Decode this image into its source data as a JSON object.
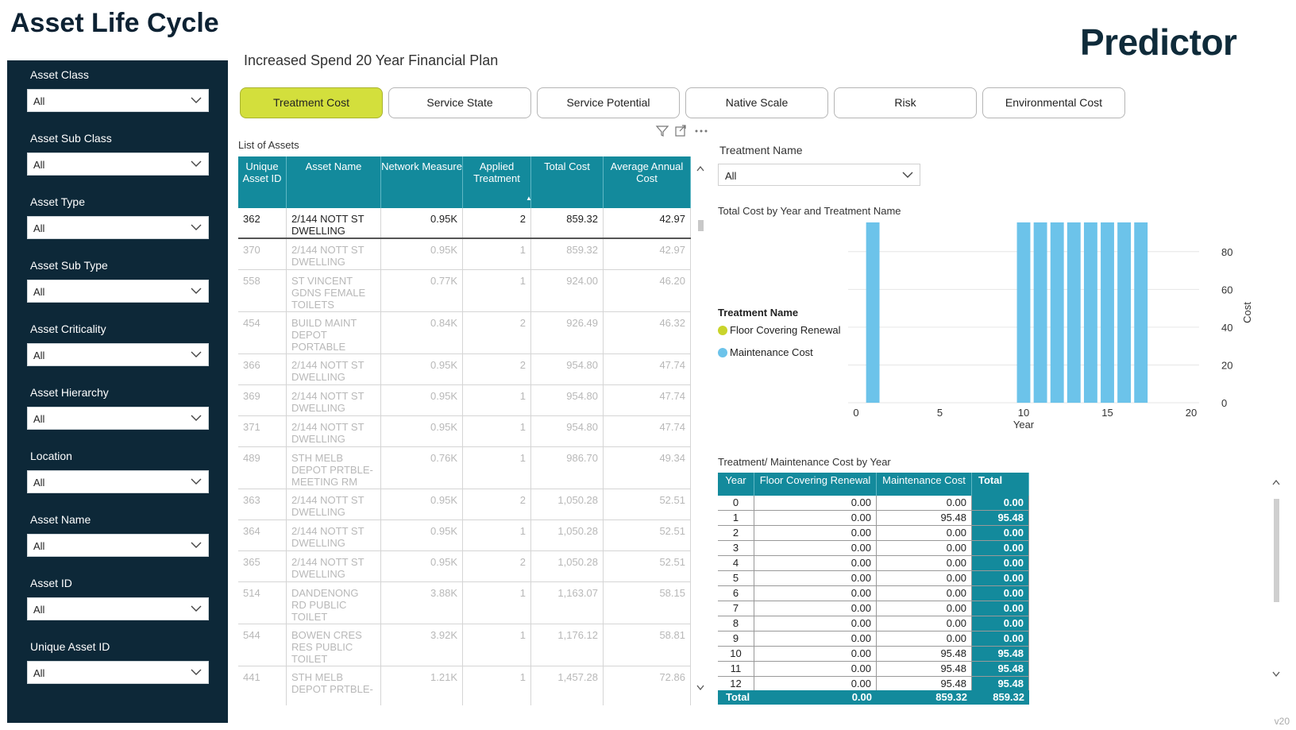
{
  "app": {
    "title": "Asset Life Cycle",
    "logo": "Predictor",
    "version": "v20"
  },
  "subtitle": "Increased Spend 20 Year Financial Plan",
  "filters": [
    {
      "label": "Asset Class",
      "value": "All"
    },
    {
      "label": "Asset Sub Class",
      "value": "All"
    },
    {
      "label": "Asset Type",
      "value": "All"
    },
    {
      "label": "Asset Sub Type",
      "value": "All"
    },
    {
      "label": "Asset Criticality",
      "value": "All"
    },
    {
      "label": "Asset Hierarchy",
      "value": "All"
    },
    {
      "label": "Location",
      "value": "All"
    },
    {
      "label": "Asset Name",
      "value": "All"
    },
    {
      "label": "Asset ID",
      "value": "All"
    },
    {
      "label": "Unique Asset ID",
      "value": "All"
    }
  ],
  "tabs": [
    {
      "label": "Treatment Cost",
      "active": true
    },
    {
      "label": "Service State",
      "active": false
    },
    {
      "label": "Service Potential",
      "active": false
    },
    {
      "label": "Native Scale",
      "active": false
    },
    {
      "label": "Risk",
      "active": false
    },
    {
      "label": "Environmental Cost",
      "active": false
    }
  ],
  "asset_list": {
    "title": "List of Assets",
    "columns": [
      "Unique Asset ID",
      "Asset Name",
      "Network Measure",
      "Applied Treatment",
      "Total Cost",
      "Average Annual Cost"
    ],
    "sort_indicator": "▲",
    "rows": [
      {
        "id": "362",
        "name": "2/144 NOTT ST DWELLING",
        "measure": "0.95K",
        "treatment": "2",
        "total": "859.32",
        "avg": "42.97",
        "selected": true
      },
      {
        "id": "370",
        "name": "2/144 NOTT ST DWELLING",
        "measure": "0.95K",
        "treatment": "1",
        "total": "859.32",
        "avg": "42.97"
      },
      {
        "id": "558",
        "name": "ST VINCENT GDNS FEMALE TOILETS",
        "measure": "0.77K",
        "treatment": "1",
        "total": "924.00",
        "avg": "46.20"
      },
      {
        "id": "454",
        "name": "BUILD MAINT DEPOT PORTABLE",
        "measure": "0.84K",
        "treatment": "2",
        "total": "926.49",
        "avg": "46.32"
      },
      {
        "id": "366",
        "name": "2/144 NOTT ST DWELLING",
        "measure": "0.95K",
        "treatment": "2",
        "total": "954.80",
        "avg": "47.74"
      },
      {
        "id": "369",
        "name": "2/144 NOTT ST DWELLING",
        "measure": "0.95K",
        "treatment": "1",
        "total": "954.80",
        "avg": "47.74"
      },
      {
        "id": "371",
        "name": "2/144 NOTT ST DWELLING",
        "measure": "0.95K",
        "treatment": "1",
        "total": "954.80",
        "avg": "47.74"
      },
      {
        "id": "489",
        "name": "STH MELB DEPOT PRTBLE-MEETING RM",
        "measure": "0.76K",
        "treatment": "1",
        "total": "986.70",
        "avg": "49.34"
      },
      {
        "id": "363",
        "name": "2/144 NOTT ST DWELLING",
        "measure": "0.95K",
        "treatment": "2",
        "total": "1,050.28",
        "avg": "52.51"
      },
      {
        "id": "364",
        "name": "2/144 NOTT ST DWELLING",
        "measure": "0.95K",
        "treatment": "1",
        "total": "1,050.28",
        "avg": "52.51"
      },
      {
        "id": "365",
        "name": "2/144 NOTT ST DWELLING",
        "measure": "0.95K",
        "treatment": "2",
        "total": "1,050.28",
        "avg": "52.51"
      },
      {
        "id": "514",
        "name": "DANDENONG RD PUBLIC TOILET",
        "measure": "3.88K",
        "treatment": "1",
        "total": "1,163.07",
        "avg": "58.15"
      },
      {
        "id": "544",
        "name": "BOWEN CRES RES PUBLIC TOILET",
        "measure": "3.92K",
        "treatment": "1",
        "total": "1,176.12",
        "avg": "58.81"
      },
      {
        "id": "441",
        "name": "STH MELB DEPOT PRTBLE-",
        "measure": "1.21K",
        "treatment": "1",
        "total": "1,457.28",
        "avg": "72.86"
      }
    ]
  },
  "treatment_slicer": {
    "label": "Treatment Name",
    "value": "All"
  },
  "chart_title": "Total Cost by Year and Treatment Name",
  "legend": {
    "title": "Treatment Name",
    "items": [
      {
        "name": "Floor Covering Renewal",
        "color": "#c9d42b"
      },
      {
        "name": "Maintenance Cost",
        "color": "#6cc3ea"
      }
    ]
  },
  "chart_data": {
    "type": "bar",
    "xlabel": "Year",
    "ylabel": "Cost",
    "x_ticks": [
      "0",
      "5",
      "10",
      "15",
      "20"
    ],
    "y_ticks": [
      "0",
      "20",
      "40",
      "60",
      "80"
    ],
    "xlim": [
      0,
      20
    ],
    "ylim": [
      0,
      95.48
    ],
    "series": [
      {
        "name": "Floor Covering Renewal",
        "x": [],
        "values": []
      },
      {
        "name": "Maintenance Cost",
        "x": [
          1,
          10,
          11,
          12,
          13,
          14,
          15,
          16,
          17
        ],
        "values": [
          95.48,
          95.48,
          95.48,
          95.48,
          95.48,
          95.48,
          95.48,
          95.48,
          95.48
        ]
      }
    ],
    "bar_color": "#6cc3ea",
    "grid": true,
    "y_axis_position": "right"
  },
  "cost_by_year": {
    "title": "Treatment/ Maintenance Cost by Year",
    "columns": [
      "Year",
      "Floor Covering Renewal",
      "Maintenance Cost",
      "Total"
    ],
    "rows": [
      [
        "0",
        "0.00",
        "0.00",
        "0.00"
      ],
      [
        "1",
        "0.00",
        "95.48",
        "95.48"
      ],
      [
        "2",
        "0.00",
        "0.00",
        "0.00"
      ],
      [
        "3",
        "0.00",
        "0.00",
        "0.00"
      ],
      [
        "4",
        "0.00",
        "0.00",
        "0.00"
      ],
      [
        "5",
        "0.00",
        "0.00",
        "0.00"
      ],
      [
        "6",
        "0.00",
        "0.00",
        "0.00"
      ],
      [
        "7",
        "0.00",
        "0.00",
        "0.00"
      ],
      [
        "8",
        "0.00",
        "0.00",
        "0.00"
      ],
      [
        "9",
        "0.00",
        "0.00",
        "0.00"
      ],
      [
        "10",
        "0.00",
        "95.48",
        "95.48"
      ],
      [
        "11",
        "0.00",
        "95.48",
        "95.48"
      ],
      [
        "12",
        "0.00",
        "95.48",
        "95.48"
      ]
    ],
    "total_row": [
      "Total",
      "0.00",
      "859.32",
      "859.32"
    ]
  }
}
